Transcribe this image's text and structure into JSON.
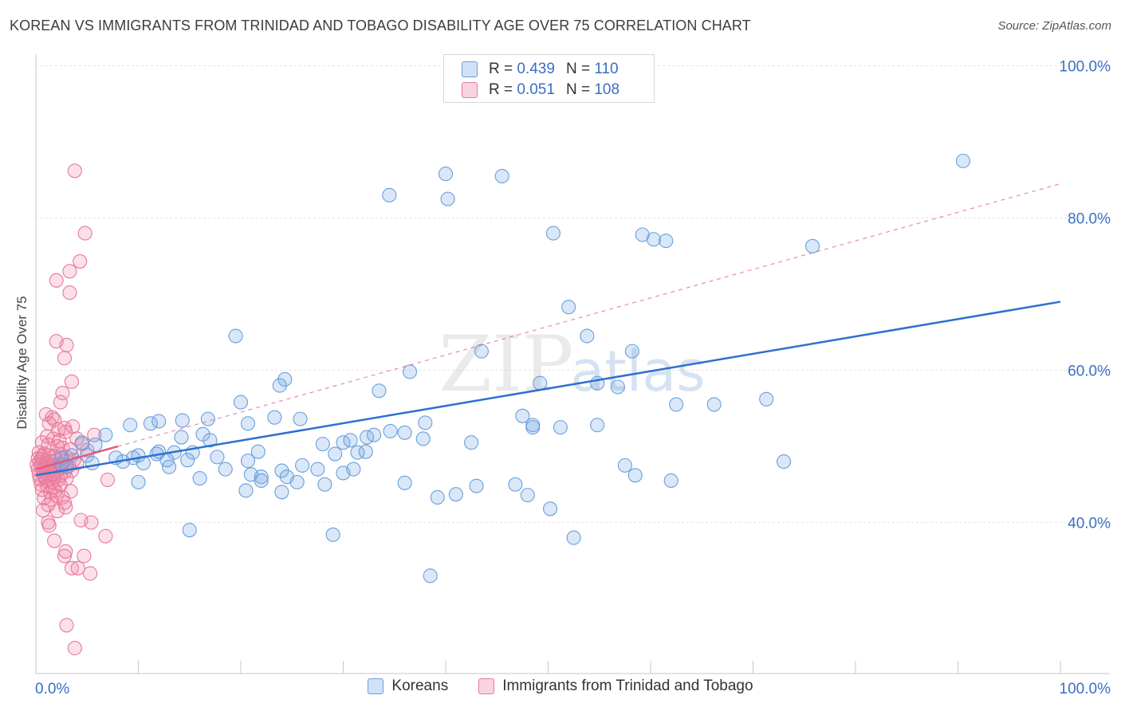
{
  "header": {
    "title": "KOREAN VS IMMIGRANTS FROM TRINIDAD AND TOBAGO DISABILITY AGE OVER 75 CORRELATION CHART",
    "source": "Source: ZipAtlas.com"
  },
  "watermark": {
    "main": "ZIP",
    "sub": "atlas"
  },
  "legend": {
    "rows": [
      {
        "r_label": "R =",
        "r_value": "0.439",
        "n_label": "N =",
        "n_value": "110"
      },
      {
        "r_label": "R =",
        "r_value": "0.051",
        "n_label": "N =",
        "n_value": "108"
      }
    ]
  },
  "bottom_legend": {
    "items": [
      "Koreans",
      "Immigrants from Trinidad and Tobago"
    ]
  },
  "chart_data": {
    "type": "scatter",
    "ylabel": "Disability Age Over 75",
    "xlim": [
      0,
      100
    ],
    "ylim": [
      20,
      100
    ],
    "x_tick_labels": [
      "0.0%",
      "100.0%"
    ],
    "y_ticks": [
      40,
      60,
      80,
      100
    ],
    "y_tick_labels": [
      "40.0%",
      "60.0%",
      "80.0%",
      "100.0%"
    ],
    "grid": true,
    "legend_position": "top-center",
    "colors": {
      "koreans_fill": "rgba(120,170,230,0.28)",
      "koreans_stroke": "#6a9fdc",
      "koreans_line": "#2f6fcf",
      "tt_fill": "rgba(240,130,165,0.25)",
      "tt_stroke": "#e8799b",
      "tt_line": "#e05a84",
      "axis_label": "#3a6fc4"
    },
    "series": [
      {
        "name": "Koreans",
        "r": 0.439,
        "n": 110,
        "trend": {
          "x": [
            0,
            100
          ],
          "y": [
            46.2,
            69.0
          ]
        },
        "points": [
          [
            90.5,
            87.5
          ],
          [
            40.0,
            85.8
          ],
          [
            45.5,
            85.5
          ],
          [
            34.5,
            83.0
          ],
          [
            40.2,
            82.5
          ],
          [
            50.5,
            78.0
          ],
          [
            59.2,
            77.8
          ],
          [
            60.3,
            77.2
          ],
          [
            61.5,
            77.0
          ],
          [
            75.8,
            76.3
          ],
          [
            52.0,
            68.3
          ],
          [
            53.8,
            64.5
          ],
          [
            19.5,
            64.5
          ],
          [
            43.5,
            62.5
          ],
          [
            58.2,
            62.5
          ],
          [
            36.5,
            59.8
          ],
          [
            49.2,
            58.3
          ],
          [
            54.8,
            58.3
          ],
          [
            56.8,
            57.8
          ],
          [
            24.3,
            58.8
          ],
          [
            23.8,
            58.0
          ],
          [
            33.5,
            57.3
          ],
          [
            20.0,
            55.8
          ],
          [
            62.5,
            55.5
          ],
          [
            66.2,
            55.5
          ],
          [
            71.3,
            56.2
          ],
          [
            12.0,
            53.3
          ],
          [
            14.3,
            53.4
          ],
          [
            16.8,
            53.6
          ],
          [
            20.7,
            53.0
          ],
          [
            23.3,
            53.8
          ],
          [
            25.8,
            53.6
          ],
          [
            38.0,
            53.1
          ],
          [
            47.5,
            54.0
          ],
          [
            48.5,
            52.8
          ],
          [
            51.2,
            52.5
          ],
          [
            54.8,
            52.8
          ],
          [
            9.2,
            52.8
          ],
          [
            11.2,
            53.0
          ],
          [
            6.8,
            51.5
          ],
          [
            14.2,
            51.2
          ],
          [
            16.3,
            51.6
          ],
          [
            17.0,
            50.8
          ],
          [
            32.3,
            51.2
          ],
          [
            33.0,
            51.5
          ],
          [
            34.6,
            52.0
          ],
          [
            36.0,
            51.8
          ],
          [
            37.8,
            51.0
          ],
          [
            28.0,
            50.3
          ],
          [
            30.0,
            50.5
          ],
          [
            30.7,
            50.8
          ],
          [
            31.4,
            49.2
          ],
          [
            42.5,
            50.5
          ],
          [
            4.5,
            50.5
          ],
          [
            5.8,
            50.2
          ],
          [
            7.8,
            48.5
          ],
          [
            2.5,
            48.5
          ],
          [
            3.5,
            48.8
          ],
          [
            5.0,
            48.8
          ],
          [
            12.0,
            49.3
          ],
          [
            11.8,
            49.0
          ],
          [
            13.5,
            49.2
          ],
          [
            15.3,
            49.2
          ],
          [
            17.7,
            48.6
          ],
          [
            20.7,
            48.1
          ],
          [
            21.7,
            49.3
          ],
          [
            29.2,
            49.0
          ],
          [
            32.2,
            49.3
          ],
          [
            9.5,
            48.5
          ],
          [
            10.0,
            48.8
          ],
          [
            12.8,
            48.2
          ],
          [
            14.8,
            48.2
          ],
          [
            5.5,
            47.8
          ],
          [
            8.5,
            48.0
          ],
          [
            2.5,
            47.5
          ],
          [
            3.0,
            47.3
          ],
          [
            10.5,
            47.8
          ],
          [
            13.0,
            47.3
          ],
          [
            18.5,
            47.0
          ],
          [
            24.0,
            46.8
          ],
          [
            26.0,
            47.5
          ],
          [
            27.5,
            47.0
          ],
          [
            30.0,
            46.5
          ],
          [
            31.0,
            47.0
          ],
          [
            21.0,
            46.3
          ],
          [
            22.0,
            46.0
          ],
          [
            24.5,
            46.0
          ],
          [
            36.0,
            45.2
          ],
          [
            57.5,
            47.5
          ],
          [
            58.5,
            46.2
          ],
          [
            73.0,
            48.0
          ],
          [
            10.0,
            45.3
          ],
          [
            16.0,
            45.8
          ],
          [
            20.5,
            44.2
          ],
          [
            22.0,
            45.5
          ],
          [
            24.0,
            44.0
          ],
          [
            25.5,
            45.3
          ],
          [
            28.2,
            45.0
          ],
          [
            43.0,
            44.8
          ],
          [
            46.8,
            45.0
          ],
          [
            62.0,
            45.5
          ],
          [
            39.2,
            43.3
          ],
          [
            41.0,
            43.7
          ],
          [
            48.0,
            43.6
          ],
          [
            50.2,
            41.8
          ],
          [
            15.0,
            39.0
          ],
          [
            29.0,
            38.4
          ],
          [
            52.5,
            38.0
          ],
          [
            38.5,
            33.0
          ],
          [
            48.5,
            52.5
          ]
        ]
      },
      {
        "name": "Immigrants from Trinidad and Tobago",
        "r": 0.051,
        "n": 108,
        "trend": {
          "x": [
            0,
            8
          ],
          "y": [
            47.0,
            50.0
          ]
        },
        "points": [
          [
            3.8,
            86.2
          ],
          [
            4.8,
            78.0
          ],
          [
            4.3,
            74.3
          ],
          [
            3.3,
            73.0
          ],
          [
            2.0,
            71.8
          ],
          [
            3.3,
            70.2
          ],
          [
            2.0,
            63.8
          ],
          [
            3.0,
            63.3
          ],
          [
            2.8,
            61.6
          ],
          [
            3.5,
            58.5
          ],
          [
            2.6,
            57.0
          ],
          [
            2.4,
            55.8
          ],
          [
            1.0,
            54.2
          ],
          [
            1.6,
            53.8
          ],
          [
            1.8,
            53.5
          ],
          [
            1.3,
            53.0
          ],
          [
            2.8,
            52.4
          ],
          [
            3.6,
            52.6
          ],
          [
            5.7,
            51.5
          ],
          [
            2.2,
            52.2
          ],
          [
            2.9,
            51.9
          ],
          [
            1.1,
            51.3
          ],
          [
            1.7,
            51.0
          ],
          [
            2.3,
            50.7
          ],
          [
            4.0,
            51.0
          ],
          [
            0.6,
            50.5
          ],
          [
            1.2,
            50.2
          ],
          [
            2.1,
            50.0
          ],
          [
            2.6,
            49.8
          ],
          [
            3.4,
            49.6
          ],
          [
            4.5,
            50.3
          ],
          [
            5.0,
            49.5
          ],
          [
            0.3,
            49.2
          ],
          [
            0.8,
            49.0
          ],
          [
            1.3,
            48.8
          ],
          [
            1.8,
            48.7
          ],
          [
            2.5,
            48.9
          ],
          [
            3.0,
            48.6
          ],
          [
            0.2,
            48.4
          ],
          [
            0.6,
            48.3
          ],
          [
            1.0,
            48.1
          ],
          [
            1.5,
            48.0
          ],
          [
            2.0,
            48.2
          ],
          [
            2.7,
            48.0
          ],
          [
            3.7,
            48.2
          ],
          [
            4.0,
            47.8
          ],
          [
            0.1,
            47.6
          ],
          [
            0.5,
            47.5
          ],
          [
            0.9,
            47.4
          ],
          [
            1.4,
            47.3
          ],
          [
            1.9,
            47.5
          ],
          [
            2.3,
            47.2
          ],
          [
            3.2,
            47.4
          ],
          [
            0.2,
            47.0
          ],
          [
            0.7,
            46.9
          ],
          [
            1.2,
            46.8
          ],
          [
            1.7,
            46.7
          ],
          [
            2.2,
            46.9
          ],
          [
            2.8,
            46.6
          ],
          [
            3.5,
            46.8
          ],
          [
            0.3,
            46.3
          ],
          [
            0.8,
            46.2
          ],
          [
            1.3,
            46.1
          ],
          [
            1.8,
            46.0
          ],
          [
            2.4,
            46.2
          ],
          [
            0.4,
            45.7
          ],
          [
            1.0,
            45.5
          ],
          [
            1.6,
            45.3
          ],
          [
            2.2,
            45.6
          ],
          [
            3.0,
            45.8
          ],
          [
            7.0,
            45.6
          ],
          [
            0.5,
            45.0
          ],
          [
            1.1,
            44.8
          ],
          [
            1.7,
            44.6
          ],
          [
            2.4,
            44.9
          ],
          [
            0.6,
            44.3
          ],
          [
            1.4,
            44.0
          ],
          [
            3.4,
            44.1
          ],
          [
            0.8,
            43.2
          ],
          [
            1.5,
            43.0
          ],
          [
            2.0,
            43.5
          ],
          [
            2.6,
            43.3
          ],
          [
            2.8,
            42.6
          ],
          [
            1.2,
            42.3
          ],
          [
            2.9,
            42.0
          ],
          [
            0.7,
            41.6
          ],
          [
            2.1,
            41.5
          ],
          [
            4.4,
            40.3
          ],
          [
            5.4,
            40.0
          ],
          [
            1.2,
            40.0
          ],
          [
            1.3,
            39.6
          ],
          [
            6.8,
            38.2
          ],
          [
            1.8,
            37.6
          ],
          [
            2.9,
            36.2
          ],
          [
            2.8,
            35.6
          ],
          [
            4.7,
            35.6
          ],
          [
            3.5,
            34.0
          ],
          [
            4.1,
            34.0
          ],
          [
            5.3,
            33.3
          ],
          [
            3.0,
            26.5
          ],
          [
            3.8,
            23.5
          ],
          [
            0.4,
            47.9
          ],
          [
            0.6,
            48.6
          ],
          [
            1.1,
            47.7
          ],
          [
            1.6,
            46.4
          ],
          [
            2.5,
            47.7
          ],
          [
            0.9,
            45.9
          ],
          [
            1.9,
            44.2
          ]
        ]
      }
    ]
  }
}
